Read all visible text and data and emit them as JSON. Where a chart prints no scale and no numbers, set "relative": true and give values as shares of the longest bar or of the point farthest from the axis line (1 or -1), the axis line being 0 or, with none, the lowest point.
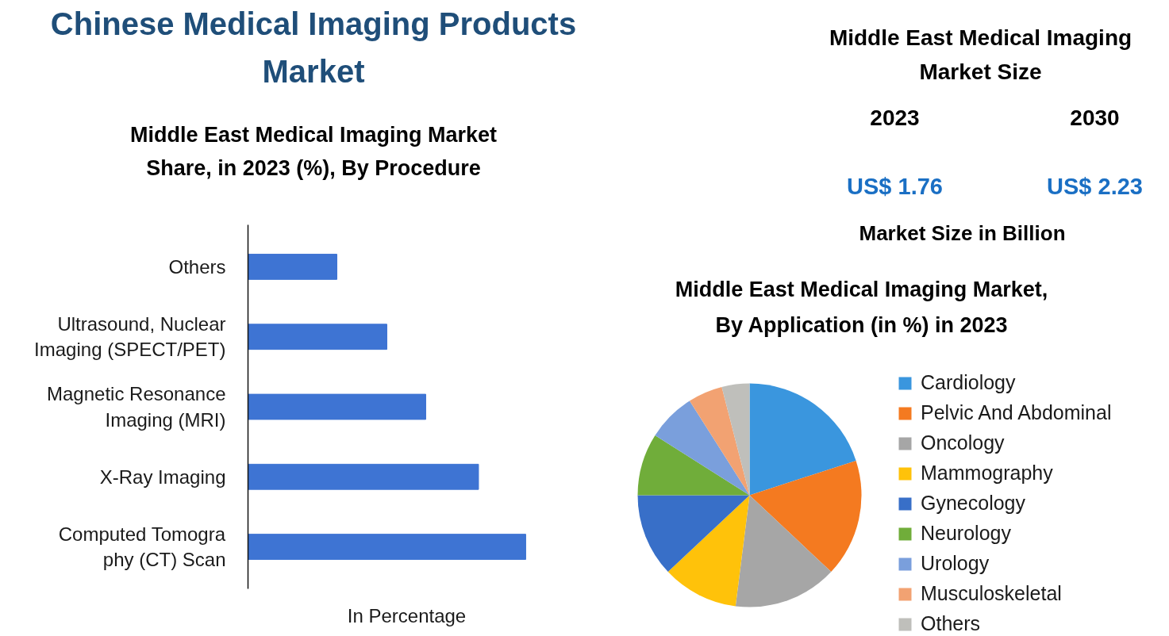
{
  "chart_data": [
    {
      "type": "bar",
      "title": "Chinese Medical Imaging Products Market",
      "subtitle": "Middle East Medical Imaging Market Share, in 2023 (%), By Procedure",
      "xlabel": "In Percentage",
      "categories": [
        "Others",
        "Ultrasound, Nuclear Imaging (SPECT/PET)",
        "Magnetic Resonance Imaging (MRI)",
        "X-Ray Imaging",
        "Computed Tomogra phy (CT) Scan"
      ],
      "values": [
        0.32,
        0.5,
        0.64,
        0.83,
        1
      ],
      "color": "#3e74d3",
      "orientation": "horizontal",
      "relative": true,
      "tick_labels": "y"
    },
    {
      "type": "other",
      "title": "Middle East Medical Imaging Market Size",
      "categories": [
        "2023",
        "2030"
      ],
      "annotations": [
        "US$ 1.76",
        "US$ 2.23",
        "Market Size in Billion"
      ]
    },
    {
      "type": "pie",
      "title": "Middle East Medical Imaging Market, By Application (in %) in 2023",
      "categories": [
        "Cardiology",
        "Pelvic And Abdominal",
        "Oncology",
        "Mammography",
        "Gynecology",
        "Neurology",
        "Urology",
        "Musculoskeletal",
        "Others"
      ],
      "values": [
        20,
        17,
        15,
        11,
        12,
        9,
        7,
        5,
        4
      ],
      "colors": [
        "#3a96de",
        "#f47a20",
        "#a6a6a6",
        "#ffc20a",
        "#386fc8",
        "#70ad3a",
        "#7a9fdc",
        "#f2a272",
        "#bfbfbb"
      ],
      "legend": "right"
    }
  ]
}
